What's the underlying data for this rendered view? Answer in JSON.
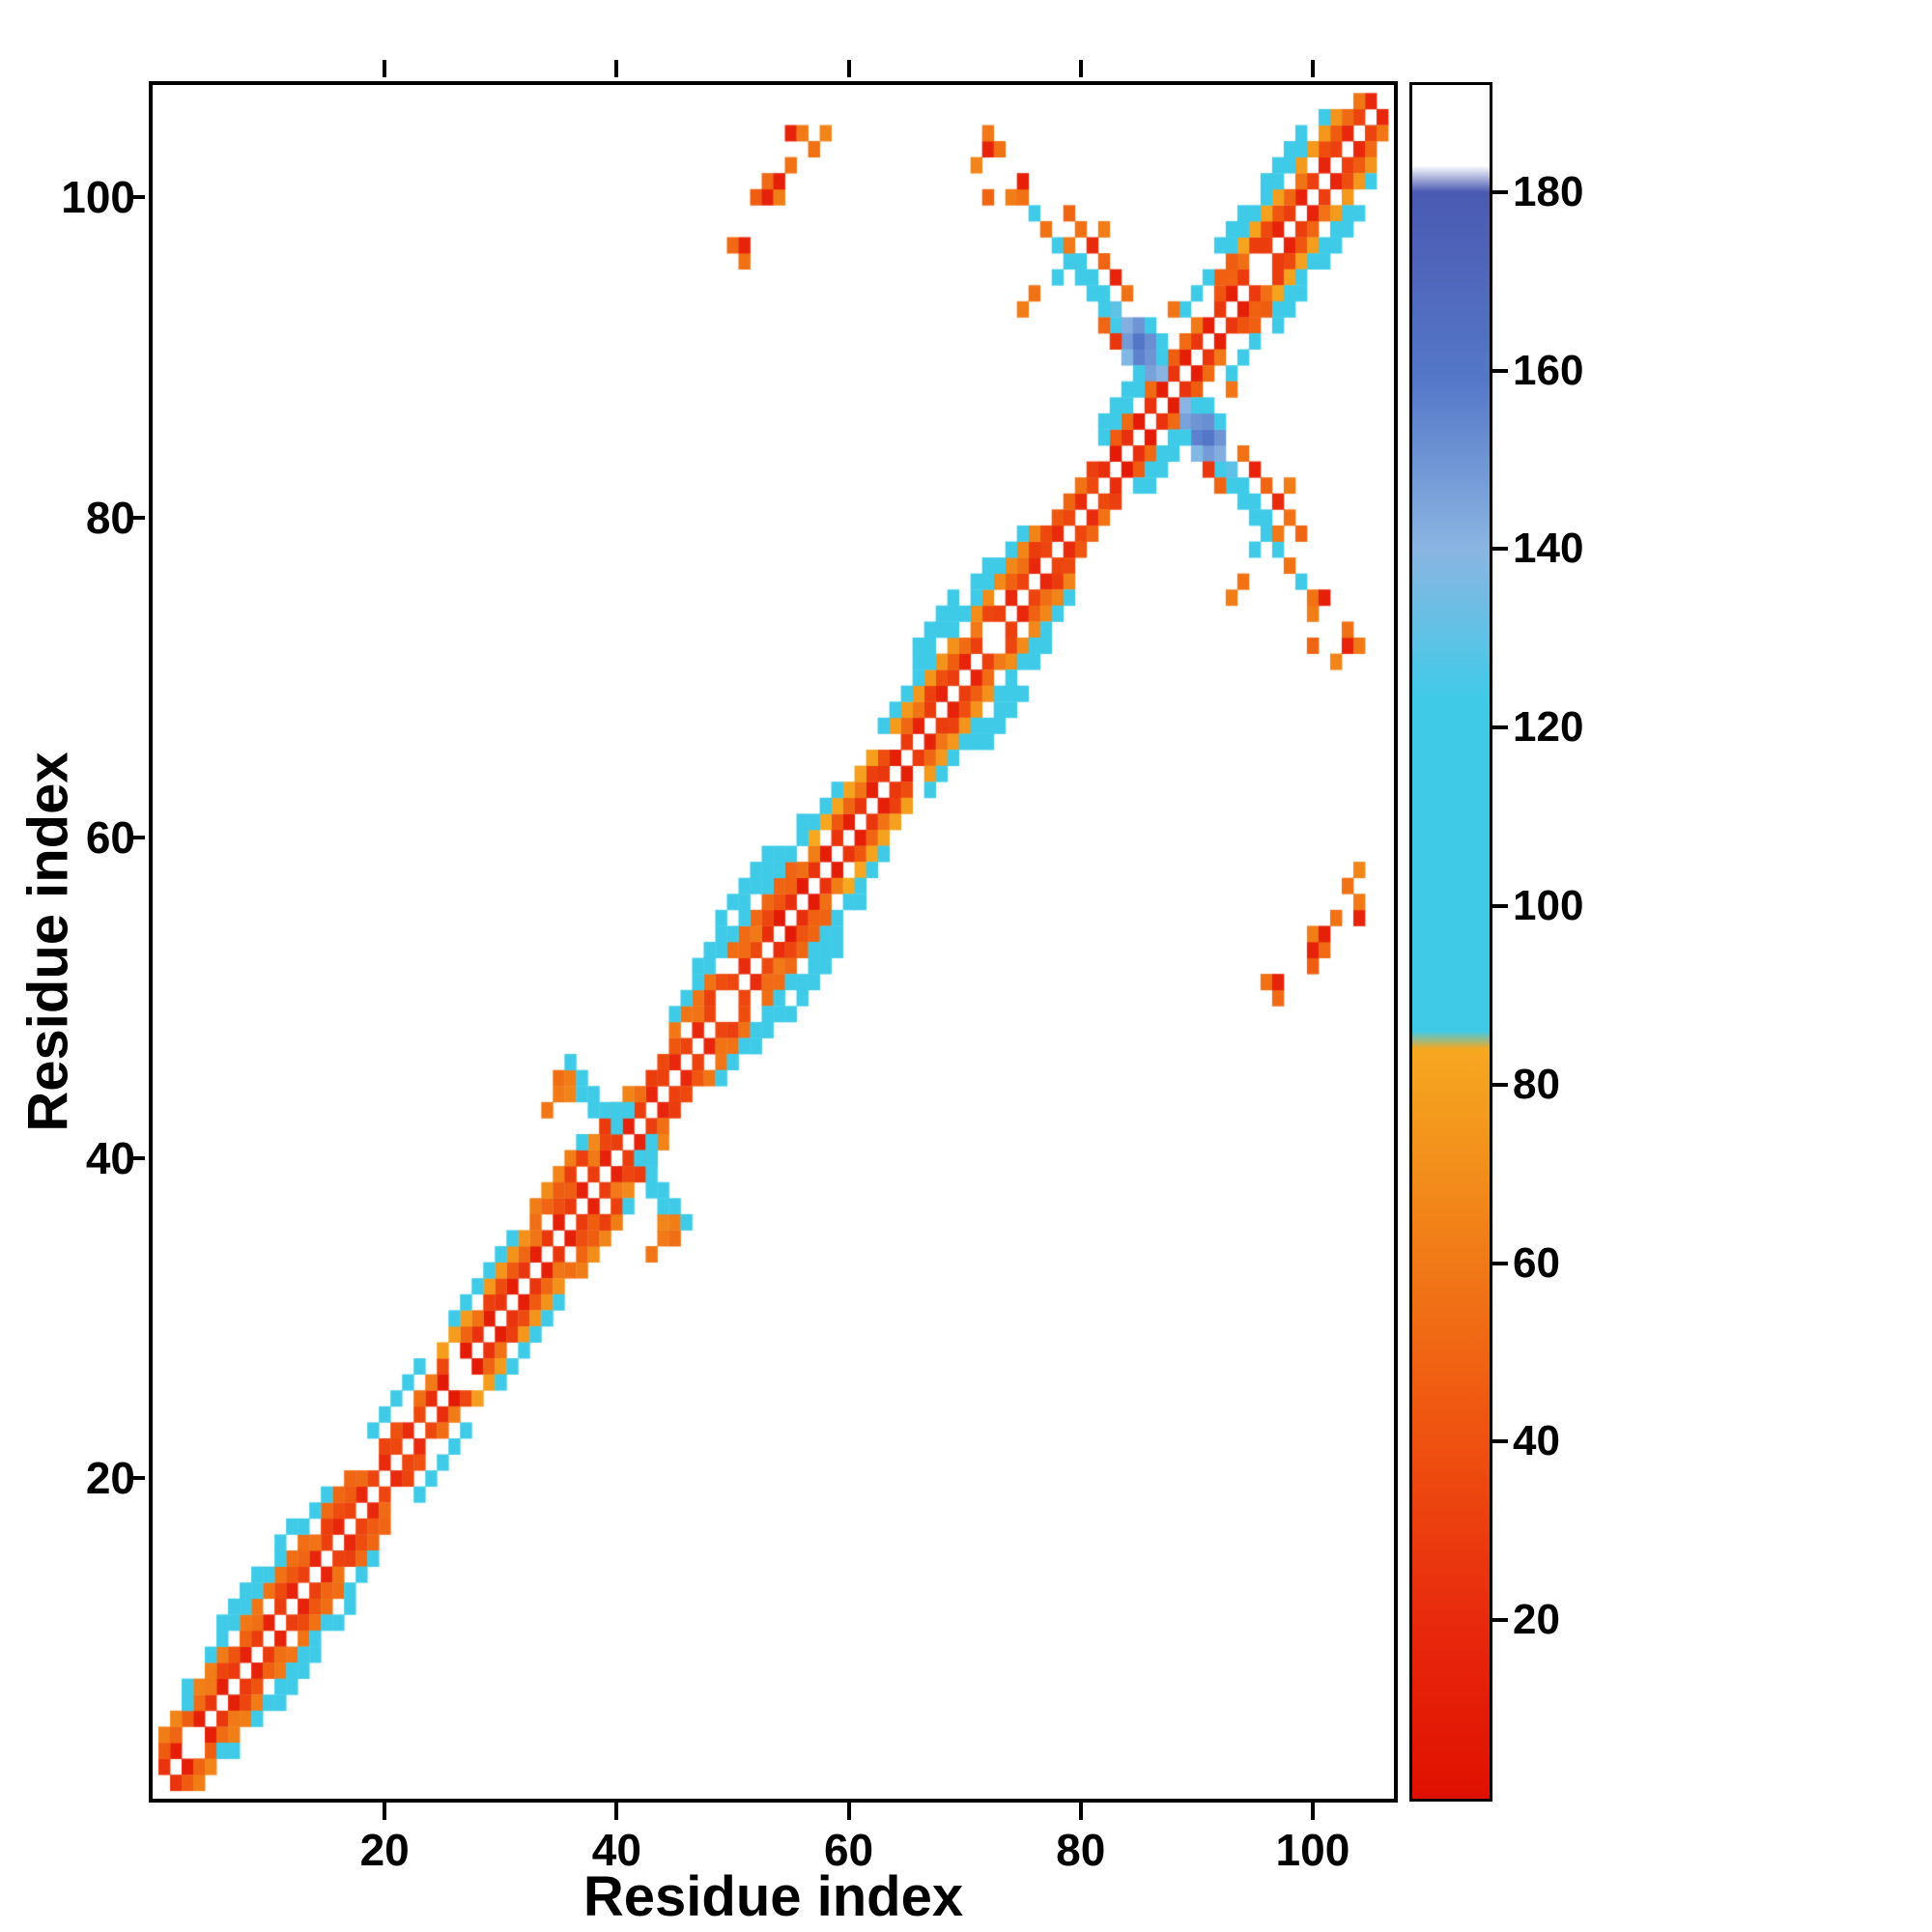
{
  "figure": {
    "xlabel": "Residue index",
    "ylabel": "Residue index"
  },
  "chart_data": {
    "type": "heatmap",
    "title": "",
    "xlabel": "Residue index",
    "ylabel": "Residue index",
    "x_range": [
      0,
      107
    ],
    "y_range": [
      0,
      107
    ],
    "x_ticks": [
      20,
      40,
      60,
      80,
      100
    ],
    "y_ticks": [
      20,
      40,
      60,
      80,
      100
    ],
    "grid": false,
    "symmetric": true,
    "colorbar": {
      "min": 0,
      "max": 192,
      "ticks": [
        20,
        40,
        60,
        80,
        100,
        120,
        140,
        160,
        180
      ],
      "stops": [
        [
          0,
          "#e01000"
        ],
        [
          19,
          "#e8280d"
        ],
        [
          42,
          "#ef5510"
        ],
        [
          69,
          "#f28b1a"
        ],
        [
          84,
          "#f6a820"
        ],
        [
          86,
          "#3fcbe8"
        ],
        [
          123,
          "#3fcbe8"
        ],
        [
          140,
          "#8ab5e2"
        ],
        [
          159,
          "#5577c8"
        ],
        [
          180,
          "#4a5ab2"
        ],
        [
          183,
          "#ffffff"
        ],
        [
          192,
          "#ffffff"
        ]
      ]
    },
    "diagonal_bands": [
      {
        "offset": 1,
        "from": 1,
        "to": 105,
        "value": 22,
        "jitter": 14,
        "skip_every": 23
      },
      {
        "offset": 2,
        "from": 2,
        "to": 9,
        "value": 45,
        "jitter": 16,
        "skip_every": 9
      },
      {
        "offset": 2,
        "from": 11,
        "to": 21,
        "value": 45,
        "jitter": 16,
        "skip_every": 9
      },
      {
        "offset": 2,
        "from": 23,
        "to": 33,
        "value": 45,
        "jitter": 16,
        "skip_every": 8
      },
      {
        "offset": 2,
        "from": 35,
        "to": 49,
        "value": 45,
        "jitter": 16,
        "skip_every": 9
      },
      {
        "offset": 2,
        "from": 51,
        "to": 63,
        "value": 46,
        "jitter": 16,
        "skip_every": 8
      },
      {
        "offset": 2,
        "from": 65,
        "to": 84,
        "value": 45,
        "jitter": 16,
        "skip_every": 9
      },
      {
        "offset": 2,
        "from": 86,
        "to": 104,
        "value": 44,
        "jitter": 16,
        "skip_every": 9
      },
      {
        "offset": 3,
        "from": 3,
        "to": 17,
        "value": 66,
        "jitter": 18,
        "skip_every": 7
      },
      {
        "offset": 3,
        "from": 25,
        "to": 32,
        "value": 66,
        "jitter": 18,
        "skip_every": 7
      },
      {
        "offset": 3,
        "from": 36,
        "to": 42,
        "value": 68,
        "jitter": 18,
        "skip_every": 7
      },
      {
        "offset": 3,
        "from": 45,
        "to": 62,
        "value": 66,
        "jitter": 18,
        "skip_every": 7
      },
      {
        "offset": 3,
        "from": 64,
        "to": 77,
        "value": 66,
        "jitter": 18,
        "skip_every": 7
      },
      {
        "offset": 3,
        "from": 91,
        "to": 102,
        "value": 64,
        "jitter": 18,
        "skip_every": 7
      },
      {
        "offset": 4,
        "from": 3,
        "to": 15,
        "value": 100,
        "jitter": 10,
        "skip_every": 8
      },
      {
        "offset": 4,
        "from": 19,
        "to": 23,
        "value": 100,
        "jitter": 10,
        "skip_every": 0
      },
      {
        "offset": 4,
        "from": 26,
        "to": 31,
        "value": 100,
        "jitter": 10,
        "skip_every": 0
      },
      {
        "offset": 4,
        "from": 44,
        "to": 60,
        "value": 101,
        "jitter": 10,
        "skip_every": 8
      },
      {
        "offset": 4,
        "from": 63,
        "to": 75,
        "value": 100,
        "jitter": 10,
        "skip_every": 8
      },
      {
        "offset": 4,
        "from": 89,
        "to": 101,
        "value": 100,
        "jitter": 10,
        "skip_every": 8
      },
      {
        "offset": 5,
        "from": 5,
        "to": 12,
        "value": 104,
        "jitter": 8,
        "skip_every": 5
      },
      {
        "offset": 5,
        "from": 47,
        "to": 56,
        "value": 104,
        "jitter": 8,
        "skip_every": 5
      },
      {
        "offset": 5,
        "from": 65,
        "to": 72,
        "value": 104,
        "jitter": 8,
        "skip_every": 5
      },
      {
        "offset": 5,
        "from": 92,
        "to": 99,
        "value": 104,
        "jitter": 8,
        "skip_every": 5
      },
      {
        "offset": 6,
        "from": 49,
        "to": 53,
        "value": 108,
        "jitter": 6,
        "skip_every": 0
      },
      {
        "offset": 6,
        "from": 66,
        "to": 69,
        "value": 108,
        "jitter": 6,
        "skip_every": 0
      }
    ],
    "cells": [
      [
        1,
        3,
        45
      ],
      [
        1,
        4,
        62
      ],
      [
        2,
        4,
        50
      ],
      [
        2,
        5,
        66
      ],
      [
        3,
        6,
        95
      ],
      [
        33,
        36,
        55
      ],
      [
        33,
        37,
        62
      ],
      [
        34,
        37,
        50
      ],
      [
        34,
        38,
        70
      ],
      [
        35,
        38,
        46
      ],
      [
        35,
        39,
        66
      ],
      [
        36,
        39,
        30
      ],
      [
        36,
        40,
        62
      ],
      [
        37,
        40,
        32
      ],
      [
        37,
        41,
        96
      ],
      [
        34,
        43,
        58
      ],
      [
        35,
        44,
        60
      ],
      [
        35,
        45,
        55
      ],
      [
        36,
        44,
        66
      ],
      [
        36,
        45,
        62
      ],
      [
        36,
        46,
        100
      ],
      [
        37,
        44,
        96
      ],
      [
        37,
        45,
        104
      ],
      [
        38,
        43,
        100
      ],
      [
        38,
        44,
        108
      ],
      [
        39,
        42,
        28
      ],
      [
        39,
        43,
        104
      ],
      [
        40,
        42,
        100
      ],
      [
        40,
        43,
        98
      ],
      [
        41,
        43,
        102
      ],
      [
        78,
        97,
        100
      ],
      [
        79,
        96,
        104
      ],
      [
        80,
        95,
        108
      ],
      [
        81,
        94,
        112
      ],
      [
        82,
        93,
        118
      ],
      [
        83,
        92,
        124
      ],
      [
        84,
        91,
        148
      ],
      [
        85,
        90,
        156
      ],
      [
        86,
        89,
        146
      ],
      [
        79,
        97,
        60
      ],
      [
        80,
        96,
        102
      ],
      [
        81,
        95,
        106
      ],
      [
        82,
        94,
        110
      ],
      [
        83,
        93,
        130
      ],
      [
        84,
        92,
        142
      ],
      [
        85,
        91,
        160
      ],
      [
        86,
        90,
        150
      ],
      [
        87,
        89,
        140
      ],
      [
        82,
        92,
        50
      ],
      [
        83,
        91,
        26
      ],
      [
        84,
        90,
        138
      ],
      [
        85,
        89,
        120
      ],
      [
        86,
        88,
        52
      ],
      [
        87,
        90,
        118
      ],
      [
        88,
        93,
        58
      ],
      [
        82,
        85,
        100
      ],
      [
        82,
        86,
        104
      ],
      [
        83,
        86,
        108
      ],
      [
        83,
        87,
        110
      ],
      [
        84,
        87,
        112
      ],
      [
        84,
        88,
        114
      ],
      [
        85,
        88,
        116
      ],
      [
        86,
        91,
        152
      ],
      [
        87,
        91,
        108
      ],
      [
        85,
        92,
        150
      ],
      [
        86,
        92,
        118
      ],
      [
        50,
        97,
        52
      ],
      [
        51,
        96,
        56
      ],
      [
        51,
        97,
        16
      ],
      [
        52,
        100,
        46
      ],
      [
        53,
        100,
        14
      ],
      [
        53,
        101,
        52
      ],
      [
        54,
        100,
        62
      ],
      [
        54,
        101,
        12
      ],
      [
        55,
        102,
        56
      ],
      [
        55,
        104,
        16
      ],
      [
        56,
        104,
        60
      ],
      [
        57,
        103,
        56
      ],
      [
        58,
        104,
        66
      ],
      [
        71,
        102,
        66
      ],
      [
        72,
        100,
        50
      ],
      [
        72,
        103,
        16
      ],
      [
        72,
        104,
        60
      ],
      [
        73,
        103,
        56
      ],
      [
        74,
        100,
        62
      ],
      [
        75,
        100,
        56
      ],
      [
        75,
        101,
        12
      ],
      [
        76,
        99,
        96
      ],
      [
        77,
        98,
        56
      ],
      [
        78,
        95,
        100
      ],
      [
        79,
        99,
        50
      ],
      [
        80,
        98,
        56
      ],
      [
        81,
        97,
        20
      ],
      [
        82,
        96,
        50
      ],
      [
        82,
        98,
        62
      ],
      [
        83,
        95,
        16
      ],
      [
        84,
        94,
        56
      ],
      [
        76,
        94,
        56
      ],
      [
        75,
        93,
        62
      ]
    ]
  }
}
